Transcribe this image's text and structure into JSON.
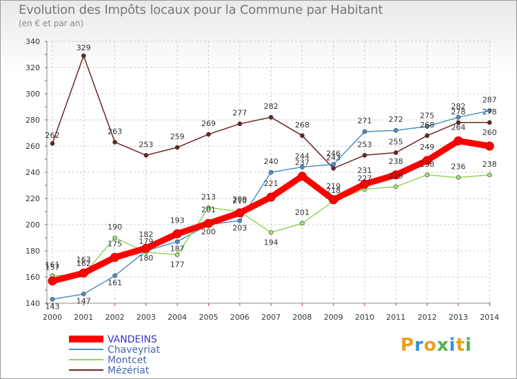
{
  "title": "Evolution des Impôts locaux pour la Commune par Habitant",
  "subtitle": "(en € et par an)",
  "logo": "Proxiti",
  "chart_data": {
    "type": "line",
    "title": "Evolution des Impôts locaux pour la Commune par Habitant",
    "subtitle": "(en € et par an)",
    "xlabel": "",
    "ylabel": "",
    "x": [
      2000,
      2001,
      2002,
      2003,
      2004,
      2005,
      2006,
      2007,
      2008,
      2009,
      2010,
      2011,
      2012,
      2013,
      2014
    ],
    "ylim": [
      140,
      340
    ],
    "yticks": [
      140,
      160,
      180,
      200,
      220,
      240,
      260,
      280,
      300,
      320,
      340
    ],
    "grid": true,
    "legend_position": "bottom-left",
    "series": [
      {
        "name": "VANDEINS",
        "color": "#ff0000",
        "values": [
          157,
          163,
          175,
          182,
          193,
          201,
          209,
          221,
          237,
          219,
          231,
          238,
          249,
          264,
          260
        ]
      },
      {
        "name": "Chaveyriat",
        "color": "#4a90c8",
        "values": [
          143,
          147,
          161,
          180,
          187,
          200,
          203,
          240,
          244,
          246,
          271,
          272,
          275,
          282,
          287
        ]
      },
      {
        "name": "Montcet",
        "color": "#8ed65c",
        "values": [
          161,
          162,
          190,
          179,
          177,
          213,
          210,
          194,
          201,
          218,
          227,
          229,
          238,
          236,
          238
        ]
      },
      {
        "name": "Mézériat",
        "color": "#6b2424",
        "values": [
          262,
          329,
          263,
          253,
          259,
          269,
          277,
          282,
          268,
          243,
          253,
          255,
          268,
          278,
          278
        ]
      }
    ]
  }
}
